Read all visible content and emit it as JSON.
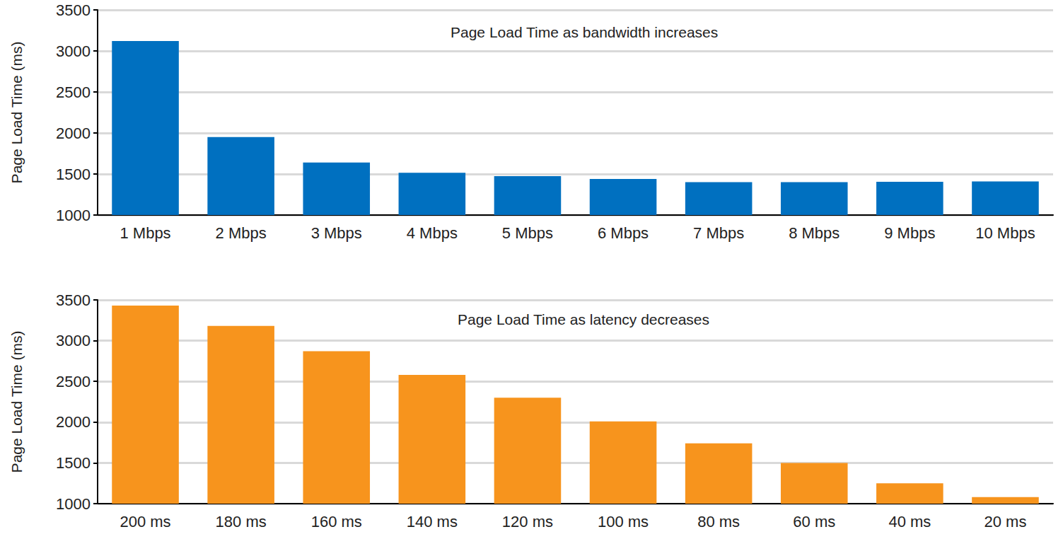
{
  "chart_data": [
    {
      "type": "bar",
      "title": "Page Load Time as bandwidth increases",
      "y_label": "Page Load Time (ms)",
      "categories": [
        "1 Mbps",
        "2 Mbps",
        "3 Mbps",
        "4 Mbps",
        "5 Mbps",
        "6 Mbps",
        "7 Mbps",
        "8 Mbps",
        "9 Mbps",
        "10 Mbps"
      ],
      "values": [
        3120,
        1950,
        1640,
        1515,
        1475,
        1440,
        1400,
        1400,
        1405,
        1410
      ],
      "color": "#0070c0",
      "ylim": [
        1000,
        3500
      ],
      "yticks": [
        1000,
        1500,
        2000,
        2500,
        3000,
        3500
      ],
      "grid": true
    },
    {
      "type": "bar",
      "title": "Page Load Time as latency decreases",
      "y_label": "Page Load Time (ms)",
      "categories": [
        "200 ms",
        "180 ms",
        "160 ms",
        "140 ms",
        "120 ms",
        "100 ms",
        "80 ms",
        "60 ms",
        "40 ms",
        "20 ms"
      ],
      "values": [
        3430,
        3180,
        2870,
        2580,
        2300,
        2010,
        1740,
        1500,
        1250,
        1080
      ],
      "color": "#f7941d",
      "ylim": [
        1000,
        3500
      ],
      "yticks": [
        1000,
        1500,
        2000,
        2500,
        3000,
        3500
      ],
      "grid": true
    }
  ]
}
